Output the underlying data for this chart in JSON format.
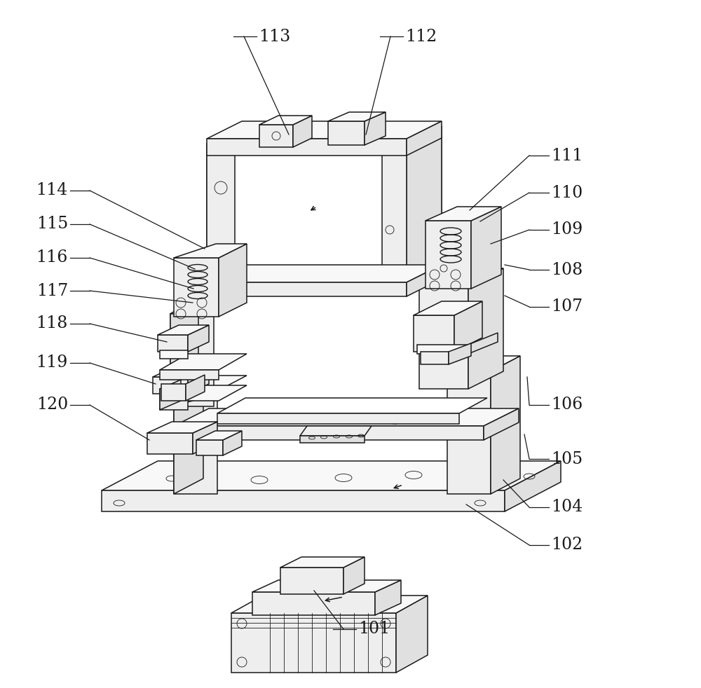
{
  "background_color": "#ffffff",
  "line_color": "#1a1a1a",
  "figure_width": 10.0,
  "figure_height": 9.82,
  "dpi": 100,
  "font_size": 17,
  "lw_main": 1.1,
  "lw_thin": 0.6,
  "fill_light": "#f8f8f8",
  "fill_mid": "#eeeeee",
  "fill_dark": "#e0e0e0",
  "right_labels": [
    [
      "101",
      [
        448,
        843
      ],
      [
        490,
        898
      ]
    ],
    [
      "102",
      [
        665,
        720
      ],
      [
        755,
        778
      ]
    ],
    [
      "104",
      [
        718,
        685
      ],
      [
        755,
        724
      ]
    ],
    [
      "105",
      [
        748,
        620
      ],
      [
        755,
        655
      ]
    ],
    [
      "106",
      [
        752,
        538
      ],
      [
        755,
        578
      ]
    ],
    [
      "107",
      [
        720,
        422
      ],
      [
        755,
        438
      ]
    ],
    [
      "108",
      [
        720,
        378
      ],
      [
        755,
        385
      ]
    ],
    [
      "109",
      [
        700,
        348
      ],
      [
        755,
        328
      ]
    ],
    [
      "110",
      [
        685,
        316
      ],
      [
        755,
        275
      ]
    ],
    [
      "111",
      [
        670,
        300
      ],
      [
        755,
        222
      ]
    ],
    [
      "112",
      [
        522,
        192
      ],
      [
        557,
        52
      ]
    ],
    [
      "113",
      [
        412,
        192
      ],
      [
        348,
        52
      ]
    ]
  ],
  "left_labels": [
    [
      "114",
      [
        292,
        355
      ],
      [
        128,
        272
      ]
    ],
    [
      "115",
      [
        278,
        384
      ],
      [
        128,
        320
      ]
    ],
    [
      "116",
      [
        276,
        412
      ],
      [
        128,
        368
      ]
    ],
    [
      "117",
      [
        275,
        432
      ],
      [
        128,
        415
      ]
    ],
    [
      "118",
      [
        238,
        488
      ],
      [
        128,
        462
      ]
    ],
    [
      "119",
      [
        222,
        548
      ],
      [
        128,
        518
      ]
    ],
    [
      "120",
      [
        213,
        628
      ],
      [
        128,
        578
      ]
    ]
  ]
}
